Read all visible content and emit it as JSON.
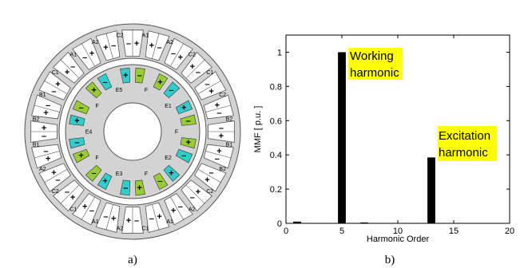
{
  "panel_a": {
    "caption": "a)",
    "stator_phase_labels": [
      "A1",
      "A2",
      "C2",
      "C1",
      "C2",
      "B2",
      "B1",
      "B2",
      "C2",
      "A2",
      "A1",
      "C1",
      "A2",
      "A1",
      "C1",
      "C2",
      "A2",
      "B1",
      "B2",
      "B1",
      "C1",
      "A1",
      "A2",
      "C2"
    ],
    "rotor_labels": [
      "E1",
      "E2",
      "E3",
      "E4",
      "E5"
    ],
    "rotor_pole_label": "F",
    "plus_sign": "+",
    "minus_sign": "–",
    "colors": {
      "cyan": "#33cccc",
      "green": "#99cc33",
      "ring": "#d3d3d3",
      "slot": "#ffffff",
      "edge": "#555555"
    }
  },
  "panel_b": {
    "caption": "b)",
    "annotations": [
      {
        "lines": [
          "Working",
          "harmonic"
        ]
      },
      {
        "lines": [
          "Excitation",
          "harmonic"
        ]
      }
    ],
    "highlight_color": "#ffff00"
  },
  "chart_data": {
    "type": "bar",
    "xlabel": "Harmonic Order",
    "ylabel": "MMF  [ p.u. ]",
    "xlim": [
      0,
      20
    ],
    "ylim": [
      0,
      1.1
    ],
    "xticks": [
      0,
      5,
      10,
      15,
      20
    ],
    "yticks": [
      0,
      0.2,
      0.4,
      0.6,
      0.8,
      1
    ],
    "x": [
      1,
      5,
      7,
      13
    ],
    "values": [
      0.01,
      1.0,
      0.005,
      0.385
    ],
    "grid": false
  }
}
